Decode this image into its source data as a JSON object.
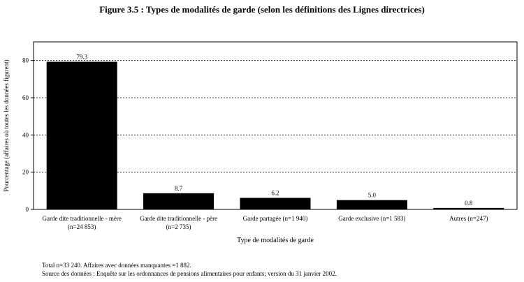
{
  "title": "Figure 3.5 : Types de modalités de garde (selon les définitions des Lignes directrices)",
  "chart_data": {
    "type": "bar",
    "categories": [
      [
        "Garde dite traditionnelle - mère",
        "(n=24 853)"
      ],
      [
        "Garde dite traditionnelle - père",
        "(n=2 735)"
      ],
      [
        "Garde partagée (n=1 940)"
      ],
      [
        "Garde exclusive (n=1 583)"
      ],
      [
        "Autres (n=247)"
      ]
    ],
    "values": [
      79.3,
      8.7,
      6.2,
      5.0,
      0.8
    ],
    "value_labels": [
      "79.3",
      "8.7",
      "6.2",
      "5.0",
      "0.8"
    ],
    "xlabel": "Type de modalités de garde",
    "ylabel": "Pourcentage (affaires où toutes les données figurent)",
    "ylim": [
      0,
      90
    ],
    "yticks": [
      0,
      20,
      40,
      60,
      80
    ],
    "gridlines": true,
    "bar_color": "#000000"
  },
  "notes": [
    "Total n=33 240.  Affaires avec données manquantes =1 882.",
    "Source des données : Enquête sur les ordonnances de pensions alimentaires pour enfants; version du 31 janvier 2002."
  ]
}
